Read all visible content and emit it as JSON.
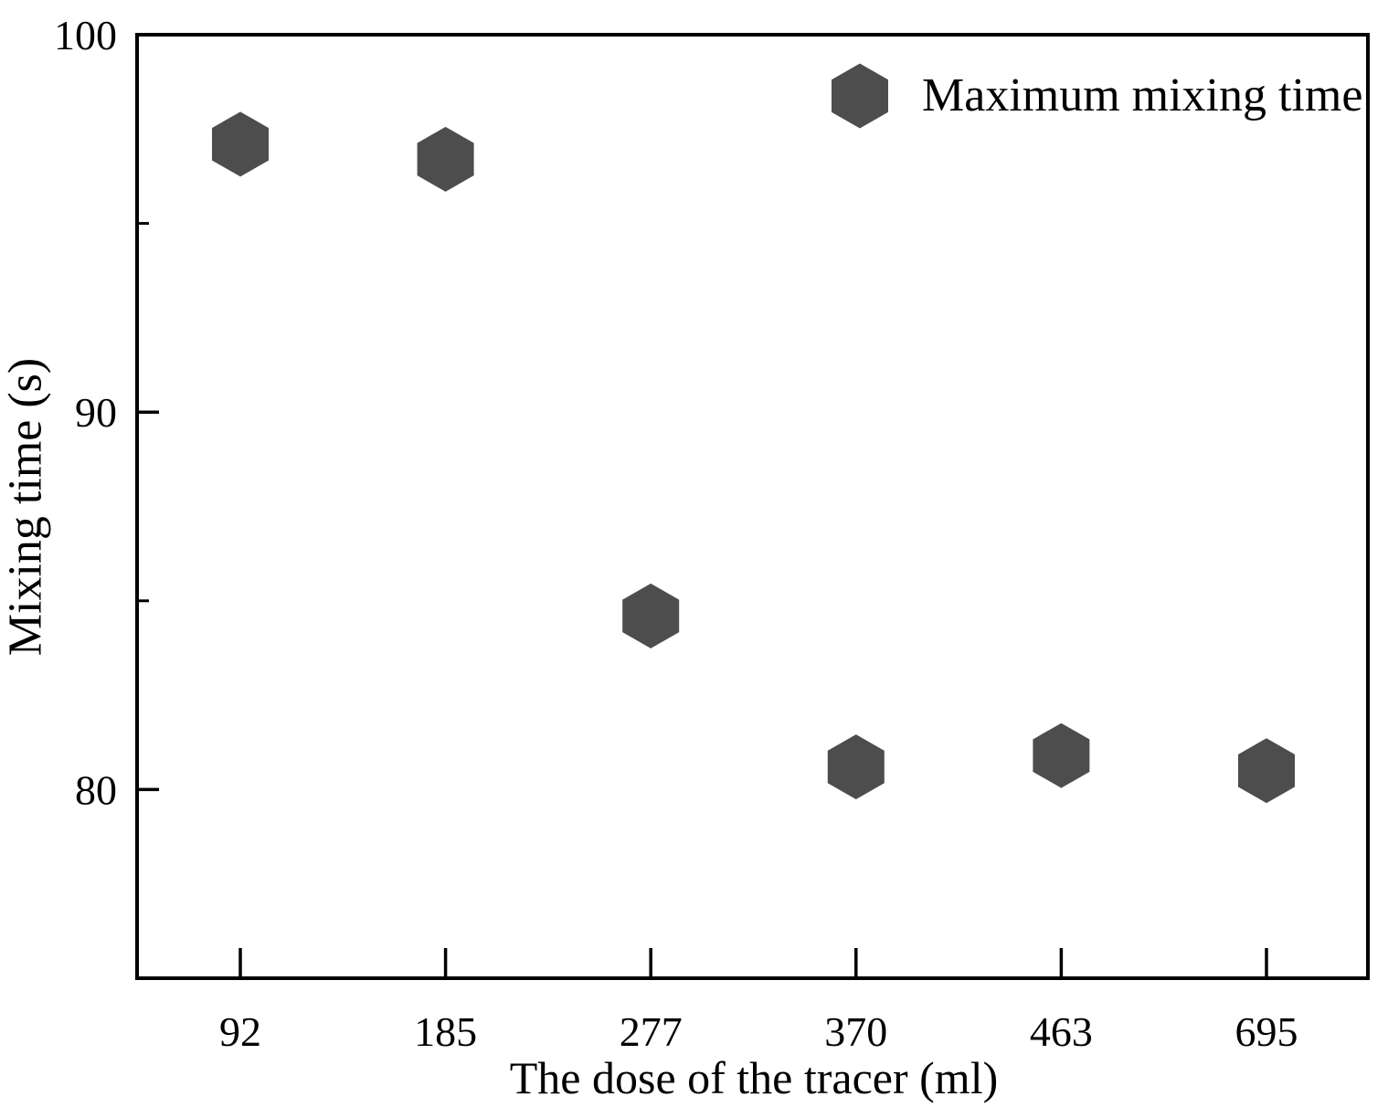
{
  "chart_data": {
    "type": "scatter",
    "title": "",
    "xlabel": "The dose of the tracer (ml)",
    "ylabel": "Mixing time (s)",
    "categories": [
      "92",
      "185",
      "277",
      "370",
      "463",
      "695"
    ],
    "series": [
      {
        "name": "Maximum mixing time",
        "marker": "hexagon",
        "color": "#4d4d4d",
        "values": [
          97.1,
          96.7,
          84.6,
          80.6,
          80.9,
          80.5
        ]
      }
    ],
    "ylim": [
      75,
      100
    ],
    "yticks_major": [
      100,
      90,
      80
    ],
    "yticks_minor": [
      95,
      85
    ],
    "xtick_side": "inside",
    "grid": false,
    "legend": {
      "label": "Maximum mixing time",
      "marker": "hexagon",
      "position": "top-right"
    },
    "colors": {
      "marker": "#4d4d4d",
      "axis": "#000000",
      "text": "#000000",
      "background": "#ffffff"
    }
  }
}
